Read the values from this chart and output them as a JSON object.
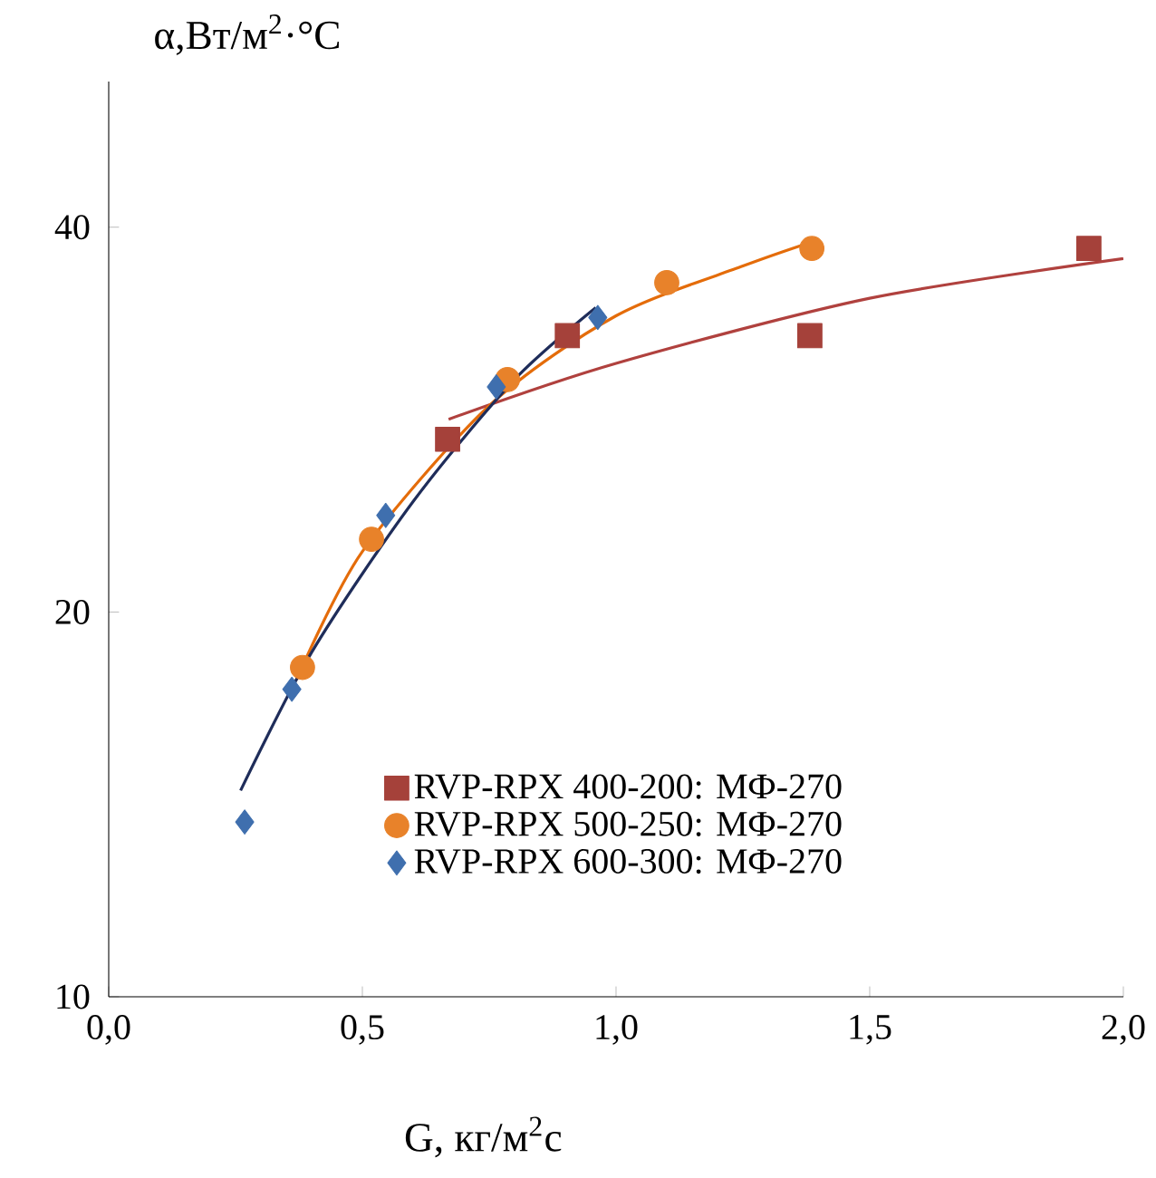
{
  "chart_data": {
    "type": "scatter",
    "xlabel": "G, кг/м$^{2}$с",
    "ylabel": "α,Вт/м$^{2}$·°С",
    "log": "y",
    "xlim": [
      0,
      2
    ],
    "ylim": [
      10,
      52
    ],
    "xticks": [
      {
        "value": 0,
        "label": "0,0"
      },
      {
        "value": 0.5,
        "label": "0,5"
      },
      {
        "value": 1,
        "label": "1,0"
      },
      {
        "value": 1.5,
        "label": "1,5"
      },
      {
        "value": 2,
        "label": "2,0"
      }
    ],
    "yticks": [
      10,
      20,
      40
    ],
    "grid": false,
    "legend": "bottom",
    "series": [
      {
        "name": "RVP-RPX 400-200: МФ-270",
        "marker": "square",
        "color": "#a5413a",
        "x": [
          0.668,
          0.904,
          1.382,
          1.932
        ],
        "values": [
          27.3,
          32.9,
          32.9,
          38.5
        ]
      },
      {
        "name": "RVP-RPX 500-250: МФ-270",
        "marker": "circle",
        "color": "#e8822a",
        "x": [
          0.382,
          0.518,
          0.786,
          1.1,
          1.386
        ],
        "values": [
          18.1,
          22.8,
          30.4,
          36.2,
          38.5
        ]
      },
      {
        "name": "RVP-RPX 600-300: МФ-270",
        "marker": "diamond",
        "color": "#3f6fae",
        "x": [
          0.268,
          0.361,
          0.546,
          0.764,
          0.964
        ],
        "values": [
          13.7,
          17.4,
          23.8,
          30.0,
          34.0
        ]
      },
      {
        "type": "line",
        "color": "#b0413e",
        "x": [
          0.67,
          1.0,
          1.5,
          2.0
        ],
        "values": [
          28.3,
          31.3,
          35.2,
          37.8
        ]
      },
      {
        "type": "line",
        "color": "#e46c0a",
        "x": [
          0.37,
          0.5,
          0.75,
          1.0,
          1.25,
          1.39
        ],
        "values": [
          17.7,
          22.3,
          29.0,
          34.1,
          37.3,
          39.0
        ]
      },
      {
        "type": "line",
        "color": "#1f2d5a",
        "x": [
          0.26,
          0.4,
          0.6,
          0.8,
          0.96
        ],
        "values": [
          14.5,
          18.6,
          24.4,
          30.4,
          34.6
        ]
      }
    ]
  }
}
